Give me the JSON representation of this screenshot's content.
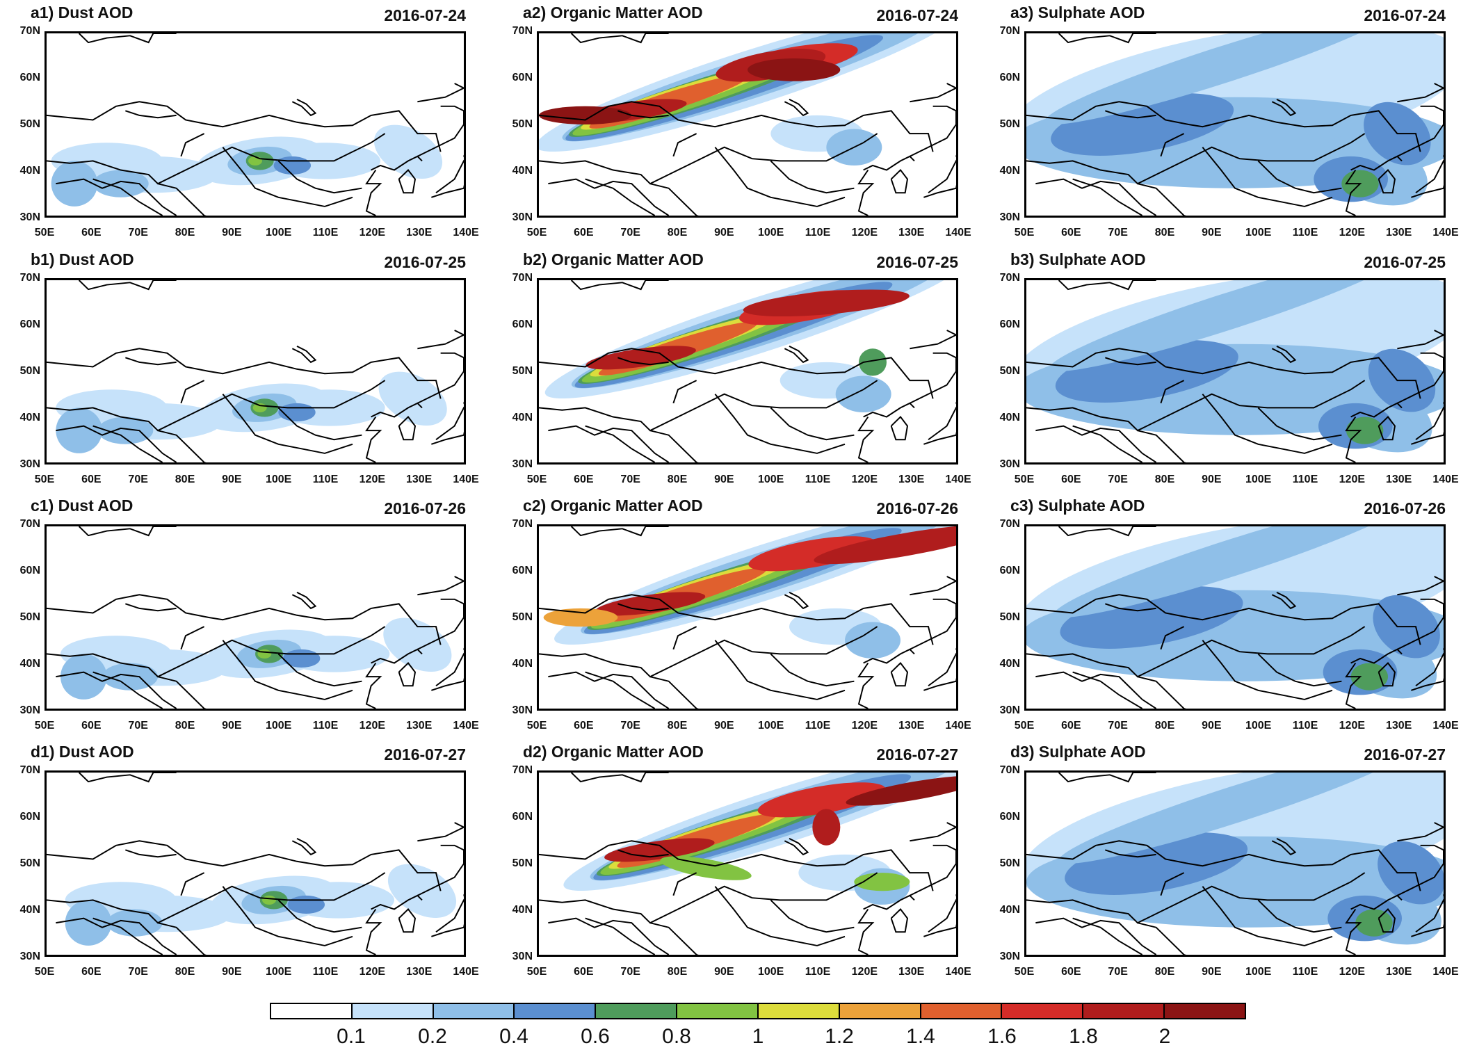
{
  "panels": [
    {
      "id": "a1",
      "title": "a1) Dust AOD",
      "date": "2016-07-24",
      "species": "dust"
    },
    {
      "id": "a2",
      "title": "a2) Organic Matter AOD",
      "date": "2016-07-24",
      "species": "organic"
    },
    {
      "id": "a3",
      "title": "a3) Sulphate AOD",
      "date": "2016-07-24",
      "species": "sulphate"
    },
    {
      "id": "b1",
      "title": "b1) Dust AOD",
      "date": "2016-07-25",
      "species": "dust"
    },
    {
      "id": "b2",
      "title": "b2) Organic Matter AOD",
      "date": "2016-07-25",
      "species": "organic"
    },
    {
      "id": "b3",
      "title": "b3) Sulphate AOD",
      "date": "2016-07-25",
      "species": "sulphate"
    },
    {
      "id": "c1",
      "title": "c1) Dust AOD",
      "date": "2016-07-26",
      "species": "dust"
    },
    {
      "id": "c2",
      "title": "c2) Organic Matter AOD",
      "date": "2016-07-26",
      "species": "organic"
    },
    {
      "id": "c3",
      "title": "c3) Sulphate AOD",
      "date": "2016-07-26",
      "species": "sulphate"
    },
    {
      "id": "d1",
      "title": "d1) Dust AOD",
      "date": "2016-07-27",
      "species": "dust"
    },
    {
      "id": "d2",
      "title": "d2) Organic Matter AOD",
      "date": "2016-07-27",
      "species": "organic"
    },
    {
      "id": "d3",
      "title": "d3) Sulphate AOD",
      "date": "2016-07-27",
      "species": "sulphate"
    }
  ],
  "axes": {
    "lat_labels": [
      "70N",
      "60N",
      "50N",
      "40N",
      "30N"
    ],
    "lon_labels": [
      "50E",
      "60E",
      "70E",
      "80E",
      "90E",
      "100E",
      "110E",
      "120E",
      "130E",
      "140E"
    ],
    "lat_range": [
      30,
      70
    ],
    "lon_range": [
      50,
      140
    ]
  },
  "colorbar": {
    "labels": [
      "0.1",
      "0.2",
      "0.4",
      "0.6",
      "0.8",
      "1",
      "1.2",
      "1.4",
      "1.6",
      "1.8",
      "2"
    ],
    "colors": [
      "#ffffff",
      "#c6e2fa",
      "#8fbfe8",
      "#5b8fd0",
      "#4f9c5c",
      "#82c342",
      "#dcdc3c",
      "#eca23a",
      "#e0602e",
      "#d42c28",
      "#b01d1d",
      "#8b1414"
    ]
  }
}
